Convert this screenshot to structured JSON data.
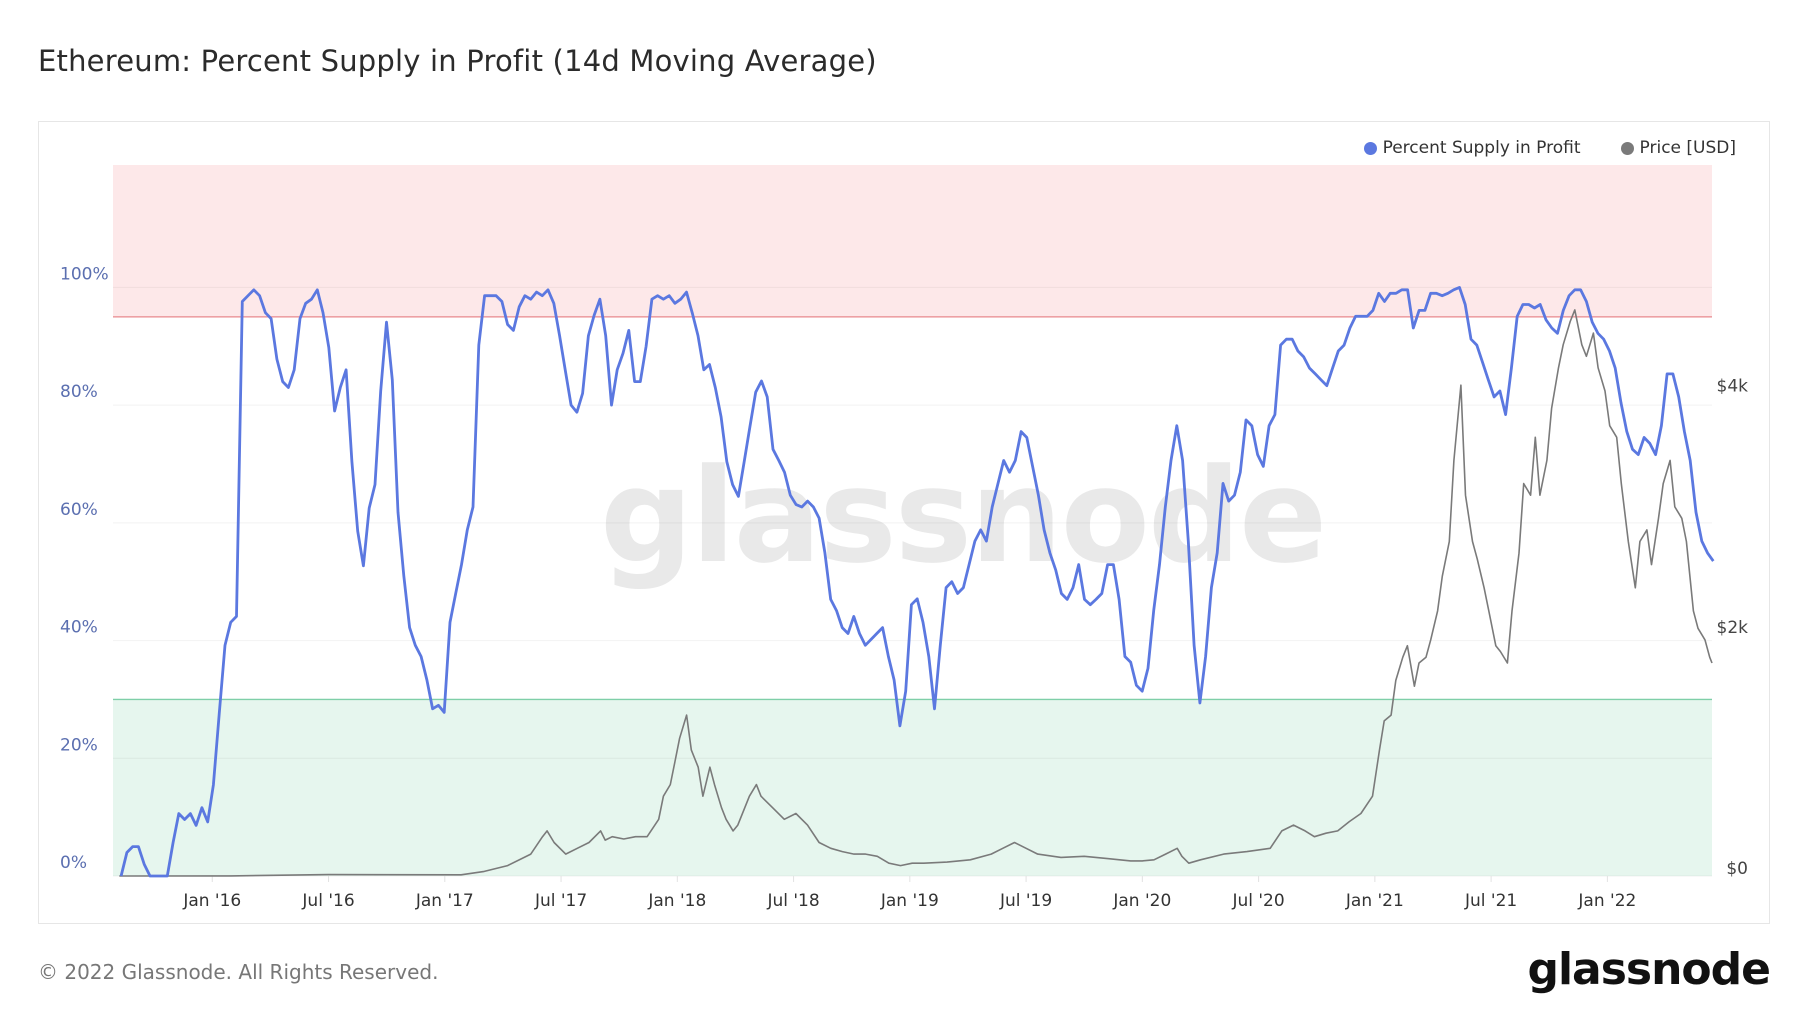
{
  "title": "Ethereum: Percent Supply in Profit (14d Moving Average)",
  "footer": "© 2022 Glassnode. All Rights Reserved.",
  "logo": "glassnode",
  "watermark": "glassnode",
  "colors": {
    "supply": "#5b78e0",
    "price": "#7a7a7a",
    "upper_band": "#fde8e9",
    "upper_line": "#e8888e",
    "lower_band": "#e6f6ee",
    "lower_line": "#7fcfa8",
    "grid": "#efefef",
    "axis_label": "#5b6fb0"
  },
  "chart_data": {
    "type": "line",
    "title": "Ethereum: Percent Supply in Profit (14d Moving Average)",
    "xlim": [
      2015.573,
      2022.45
    ],
    "x_ticks": [
      {
        "value": 2016.0,
        "label": "Jan '16"
      },
      {
        "value": 2016.5,
        "label": "Jul '16"
      },
      {
        "value": 2017.0,
        "label": "Jan '17"
      },
      {
        "value": 2017.5,
        "label": "Jul '17"
      },
      {
        "value": 2018.0,
        "label": "Jan '18"
      },
      {
        "value": 2018.5,
        "label": "Jul '18"
      },
      {
        "value": 2019.0,
        "label": "Jan '19"
      },
      {
        "value": 2019.5,
        "label": "Jul '19"
      },
      {
        "value": 2020.0,
        "label": "Jan '20"
      },
      {
        "value": 2020.5,
        "label": "Jul '20"
      },
      {
        "value": 2021.0,
        "label": "Jan '21"
      },
      {
        "value": 2021.5,
        "label": "Jul '21"
      },
      {
        "value": 2022.0,
        "label": "Jan '22"
      }
    ],
    "y_left": {
      "lim": [
        0,
        120.8
      ],
      "ticks": [
        {
          "value": 0,
          "label": "0%"
        },
        {
          "value": 20,
          "label": "20%"
        },
        {
          "value": 40,
          "label": "40%"
        },
        {
          "value": 60,
          "label": "60%"
        },
        {
          "value": 80,
          "label": "80%"
        },
        {
          "value": 100,
          "label": "100%"
        }
      ]
    },
    "y_right": {
      "lim": [
        0,
        5896
      ],
      "ticks": [
        {
          "value": 0,
          "label": "$0"
        },
        {
          "value": 2000,
          "label": "$2k"
        },
        {
          "value": 4000,
          "label": "$4k"
        }
      ]
    },
    "bands": [
      {
        "name": "upper",
        "from": 95,
        "to": 120.8
      },
      {
        "name": "lower",
        "from": 0,
        "to": 30
      }
    ],
    "legend": {
      "placement": "top-right",
      "entries": [
        "Percent Supply in Profit",
        "Price [USD]"
      ]
    },
    "series": [
      {
        "name": "Percent Supply in Profit",
        "axis": "left",
        "x_start": 2015.608,
        "x_step_years": 0.02481,
        "values": [
          0,
          4,
          5,
          5,
          2,
          0,
          0,
          0,
          0,
          5.7,
          10.6,
          9.6,
          10.6,
          8.6,
          11.6,
          9.2,
          15.5,
          27.5,
          39.2,
          43.1,
          44.1,
          97.6,
          98.6,
          99.6,
          98.6,
          95.7,
          94.7,
          87.8,
          84,
          83,
          86,
          94.7,
          97.3,
          98,
          99.6,
          95.7,
          89.8,
          79,
          83,
          86,
          70.4,
          58.6,
          52.7,
          62.5,
          66.5,
          82.4,
          94.1,
          84.3,
          61.8,
          51,
          42.2,
          39.2,
          37.3,
          33.3,
          28.4,
          29,
          27.8,
          43.1,
          48,
          52.9,
          58.8,
          62.7,
          90.2,
          98.6,
          98.6,
          98.6,
          97.6,
          93.7,
          92.7,
          96.7,
          98.6,
          98,
          99.2,
          98.6,
          99.6,
          97.3,
          91.8,
          85.9,
          80,
          78.8,
          82,
          91.8,
          95.3,
          98,
          91.8,
          80,
          86,
          88.8,
          92.7,
          84,
          84,
          90,
          98,
          98.6,
          98,
          98.6,
          97.3,
          98,
          99.2,
          95.7,
          91.8,
          86,
          86.9,
          83,
          78,
          70.4,
          66.5,
          64.5,
          70.4,
          76.3,
          82.2,
          84.1,
          81.4,
          72.5,
          70.6,
          68.6,
          64.7,
          63.1,
          62.7,
          63.7,
          62.7,
          60.8,
          54.9,
          47,
          45.1,
          42.2,
          41.2,
          44.1,
          41.2,
          39.2,
          40.2,
          41.2,
          42.2,
          37.3,
          33.3,
          25.5,
          31.4,
          46.1,
          47.1,
          43.1,
          37.3,
          28.4,
          39.2,
          49,
          50,
          48,
          49,
          52.9,
          56.9,
          58.8,
          56.9,
          62.7,
          66.7,
          70.6,
          68.6,
          70.6,
          75.5,
          74.5,
          69.6,
          64.7,
          58.8,
          54.9,
          52,
          48,
          47,
          49,
          52.9,
          47,
          46.1,
          47,
          48,
          52.9,
          52.9,
          47,
          37.3,
          36.3,
          32.4,
          31.4,
          35.3,
          45.1,
          52.9,
          62.7,
          70.6,
          76.5,
          70.6,
          56.9,
          39.2,
          29.4,
          37.3,
          49,
          54.9,
          66.7,
          63.7,
          64.7,
          68.6,
          77.5,
          76.5,
          71.6,
          69.6,
          76.5,
          78.4,
          90.2,
          91.2,
          91.2,
          89.2,
          88.2,
          86.3,
          85.3,
          84.3,
          83.3,
          86.3,
          89.2,
          90.2,
          93.1,
          95.1,
          95.1,
          95.1,
          96.1,
          99,
          97.6,
          99,
          99,
          99.6,
          99.6,
          93.1,
          96.1,
          96.1,
          99,
          99,
          98.6,
          99,
          99.6,
          100,
          97.1,
          91.2,
          90.2,
          87.3,
          84.3,
          81.4,
          82.4,
          78.4,
          86.3,
          95.1,
          97.1,
          97.1,
          96.5,
          97.1,
          94.5,
          93.1,
          92.2,
          96.1,
          98.6,
          99.6,
          99.6,
          97.6,
          94.1,
          92.2,
          91.2,
          89.2,
          86.3,
          80.4,
          75.5,
          72.5,
          71.6,
          74.5,
          73.5,
          71.6,
          76.5,
          85.3,
          85.3,
          81.4,
          75.5,
          70.6,
          61.8,
          56.9,
          54.9,
          53.5
        ]
      },
      {
        "name": "Price [USD]",
        "axis": "right",
        "points": [
          [
            2015.6,
            0
          ],
          [
            2016.08,
            1
          ],
          [
            2016.5,
            12
          ],
          [
            2017.07,
            10
          ],
          [
            2017.17,
            38
          ],
          [
            2017.27,
            86
          ],
          [
            2017.37,
            182
          ],
          [
            2017.42,
            326
          ],
          [
            2017.44,
            374
          ],
          [
            2017.47,
            278
          ],
          [
            2017.52,
            182
          ],
          [
            2017.57,
            230
          ],
          [
            2017.62,
            278
          ],
          [
            2017.67,
            374
          ],
          [
            2017.69,
            298
          ],
          [
            2017.72,
            326
          ],
          [
            2017.77,
            307
          ],
          [
            2017.82,
            326
          ],
          [
            2017.87,
            326
          ],
          [
            2017.92,
            470
          ],
          [
            2017.94,
            662
          ],
          [
            2017.97,
            758
          ],
          [
            2017.99,
            950
          ],
          [
            2018.01,
            1142
          ],
          [
            2018.04,
            1334
          ],
          [
            2018.06,
            1046
          ],
          [
            2018.09,
            902
          ],
          [
            2018.11,
            662
          ],
          [
            2018.14,
            902
          ],
          [
            2018.16,
            758
          ],
          [
            2018.19,
            566
          ],
          [
            2018.21,
            470
          ],
          [
            2018.24,
            374
          ],
          [
            2018.26,
            422
          ],
          [
            2018.31,
            662
          ],
          [
            2018.34,
            758
          ],
          [
            2018.36,
            662
          ],
          [
            2018.41,
            566
          ],
          [
            2018.46,
            470
          ],
          [
            2018.51,
            518
          ],
          [
            2018.56,
            422
          ],
          [
            2018.61,
            278
          ],
          [
            2018.66,
            230
          ],
          [
            2018.71,
            202
          ],
          [
            2018.76,
            182
          ],
          [
            2018.81,
            182
          ],
          [
            2018.86,
            163
          ],
          [
            2018.91,
            106
          ],
          [
            2018.96,
            86
          ],
          [
            2019.01,
            106
          ],
          [
            2019.06,
            106
          ],
          [
            2019.16,
            115
          ],
          [
            2019.26,
            134
          ],
          [
            2019.35,
            182
          ],
          [
            2019.4,
            230
          ],
          [
            2019.45,
            278
          ],
          [
            2019.5,
            230
          ],
          [
            2019.55,
            182
          ],
          [
            2019.65,
            154
          ],
          [
            2019.75,
            163
          ],
          [
            2019.85,
            144
          ],
          [
            2019.95,
            125
          ],
          [
            2020.0,
            125
          ],
          [
            2020.05,
            134
          ],
          [
            2020.1,
            182
          ],
          [
            2020.15,
            230
          ],
          [
            2020.17,
            163
          ],
          [
            2020.2,
            106
          ],
          [
            2020.25,
            134
          ],
          [
            2020.35,
            182
          ],
          [
            2020.45,
            202
          ],
          [
            2020.55,
            230
          ],
          [
            2020.6,
            374
          ],
          [
            2020.65,
            422
          ],
          [
            2020.7,
            374
          ],
          [
            2020.74,
            326
          ],
          [
            2020.79,
            355
          ],
          [
            2020.84,
            374
          ],
          [
            2020.89,
            451
          ],
          [
            2020.94,
            518
          ],
          [
            2020.99,
            662
          ],
          [
            2021.02,
            1046
          ],
          [
            2021.04,
            1286
          ],
          [
            2021.07,
            1334
          ],
          [
            2021.09,
            1622
          ],
          [
            2021.12,
            1814
          ],
          [
            2021.14,
            1910
          ],
          [
            2021.17,
            1574
          ],
          [
            2021.19,
            1766
          ],
          [
            2021.22,
            1814
          ],
          [
            2021.24,
            1958
          ],
          [
            2021.27,
            2198
          ],
          [
            2021.29,
            2486
          ],
          [
            2021.32,
            2774
          ],
          [
            2021.34,
            3446
          ],
          [
            2021.37,
            4070
          ],
          [
            2021.39,
            3158
          ],
          [
            2021.42,
            2774
          ],
          [
            2021.44,
            2630
          ],
          [
            2021.47,
            2390
          ],
          [
            2021.49,
            2198
          ],
          [
            2021.52,
            1910
          ],
          [
            2021.54,
            1862
          ],
          [
            2021.57,
            1766
          ],
          [
            2021.59,
            2198
          ],
          [
            2021.62,
            2678
          ],
          [
            2021.64,
            3254
          ],
          [
            2021.67,
            3158
          ],
          [
            2021.69,
            3638
          ],
          [
            2021.71,
            3158
          ],
          [
            2021.74,
            3446
          ],
          [
            2021.76,
            3878
          ],
          [
            2021.79,
            4214
          ],
          [
            2021.81,
            4406
          ],
          [
            2021.84,
            4598
          ],
          [
            2021.86,
            4694
          ],
          [
            2021.89,
            4406
          ],
          [
            2021.91,
            4310
          ],
          [
            2021.94,
            4502
          ],
          [
            2021.96,
            4214
          ],
          [
            2021.99,
            4022
          ],
          [
            2022.01,
            3734
          ],
          [
            2022.04,
            3638
          ],
          [
            2022.06,
            3254
          ],
          [
            2022.09,
            2774
          ],
          [
            2022.12,
            2390
          ],
          [
            2022.14,
            2774
          ],
          [
            2022.17,
            2870
          ],
          [
            2022.19,
            2582
          ],
          [
            2022.22,
            2966
          ],
          [
            2022.24,
            3254
          ],
          [
            2022.27,
            3446
          ],
          [
            2022.29,
            3062
          ],
          [
            2022.32,
            2966
          ],
          [
            2022.34,
            2774
          ],
          [
            2022.37,
            2198
          ],
          [
            2022.39,
            2054
          ],
          [
            2022.42,
            1958
          ],
          [
            2022.44,
            1814
          ],
          [
            2022.45,
            1766
          ]
        ]
      }
    ]
  }
}
